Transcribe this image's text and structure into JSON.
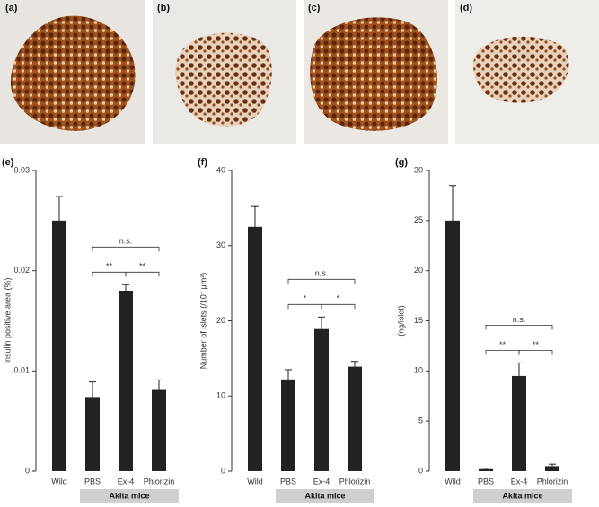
{
  "panels": [
    "(a)",
    "(b)",
    "(c)",
    "(d)"
  ],
  "chart_data": [
    {
      "type": "bar",
      "title": "(e)",
      "ylabel": "Insulin positive area (%)",
      "categories": [
        "Wild",
        "PBS",
        "Ex-4",
        "Phlorizin"
      ],
      "values": [
        0.025,
        0.0074,
        0.018,
        0.0081
      ],
      "errors": [
        0.0024,
        0.0015,
        0.0006,
        0.001
      ],
      "color": "#222222",
      "ylim": [
        0,
        0.03
      ],
      "yticks": [
        0,
        0.01,
        0.02,
        0.03
      ],
      "comparisons": [
        {
          "label": "**",
          "between": [
            "PBS",
            "Ex-4"
          ]
        },
        {
          "label": "**",
          "between": [
            "Ex-4",
            "Phlorizin"
          ]
        },
        {
          "label": "n.s.",
          "between": [
            "PBS",
            "Phlorizin"
          ]
        }
      ],
      "group": {
        "label": "Akita mice",
        "categories": [
          "PBS",
          "Ex-4",
          "Phlorizin"
        ]
      }
    },
    {
      "type": "bar",
      "title": "(f)",
      "ylabel": "Number of islets (/10⁷ μm²)",
      "categories": [
        "Wild",
        "PBS",
        "Ex-4",
        "Phlorizin"
      ],
      "values": [
        32.5,
        12.2,
        18.9,
        13.9
      ],
      "errors": [
        2.7,
        1.3,
        1.6,
        0.7
      ],
      "color": "#222222",
      "ylim": [
        0,
        40
      ],
      "yticks": [
        0,
        10,
        20,
        30,
        40
      ],
      "comparisons": [
        {
          "label": "*",
          "between": [
            "PBS",
            "Ex-4"
          ]
        },
        {
          "label": "*",
          "between": [
            "Ex-4",
            "Phlorizin"
          ]
        },
        {
          "label": "n.s.",
          "between": [
            "PBS",
            "Phlorizin"
          ]
        }
      ],
      "group": {
        "label": "Akita mice",
        "categories": [
          "PBS",
          "Ex-4",
          "Phlorizin"
        ]
      }
    },
    {
      "type": "bar",
      "title": "(g)",
      "ylabel": "(ng/islet)",
      "categories": [
        "Wild",
        "PBS",
        "Ex-4",
        "Phlorizin"
      ],
      "values": [
        25,
        0.2,
        9.5,
        0.5
      ],
      "errors": [
        3.5,
        0.1,
        1.3,
        0.2
      ],
      "color": "#222222",
      "ylim": [
        0,
        30
      ],
      "yticks": [
        0,
        5,
        10,
        15,
        20,
        25,
        30
      ],
      "comparisons": [
        {
          "label": "**",
          "between": [
            "PBS",
            "Ex-4"
          ]
        },
        {
          "label": "**",
          "between": [
            "Ex-4",
            "Phlorizin"
          ]
        },
        {
          "label": "n.s.",
          "between": [
            "PBS",
            "Phlorizin"
          ]
        }
      ],
      "group": {
        "label": "Akita mice",
        "categories": [
          "PBS",
          "Ex-4",
          "Phlorizin"
        ]
      }
    }
  ]
}
